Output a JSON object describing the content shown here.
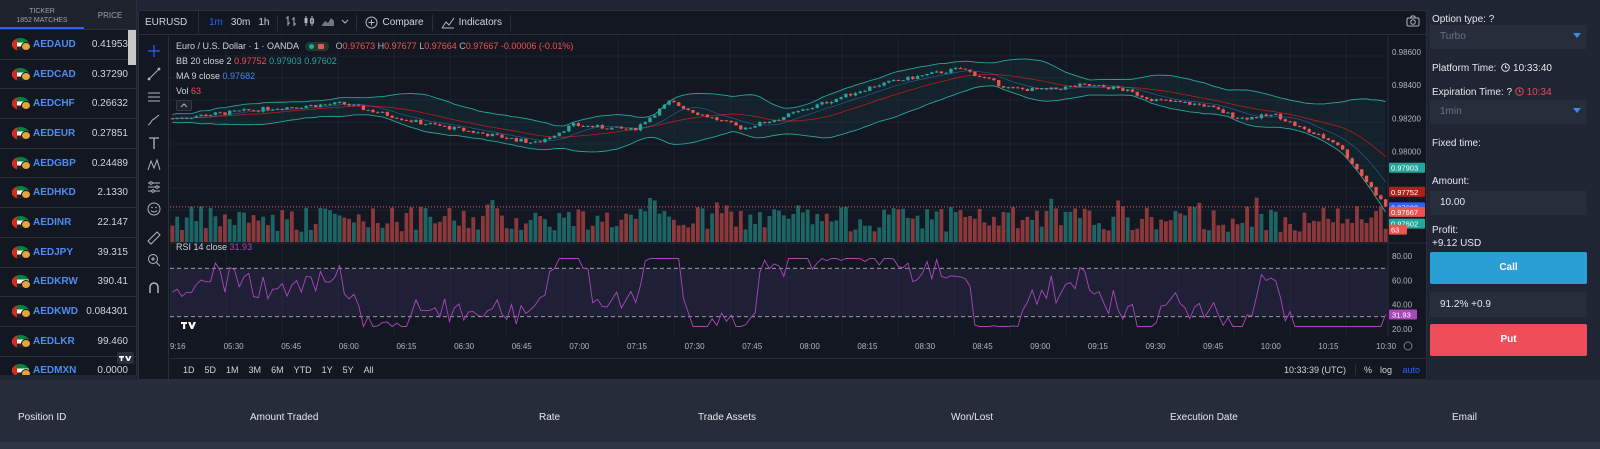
{
  "ticker_panel": {
    "header_ticker": "TICKER",
    "header_matches": "1852 MATCHES",
    "header_price": "PRICE",
    "rows": [
      {
        "symbol": "AEDAUD",
        "price": "0.41953"
      },
      {
        "symbol": "AEDCAD",
        "price": "0.37290"
      },
      {
        "symbol": "AEDCHF",
        "price": "0.26632"
      },
      {
        "symbol": "AEDEUR",
        "price": "0.27851"
      },
      {
        "symbol": "AEDGBP",
        "price": "0.24489"
      },
      {
        "symbol": "AEDHKD",
        "price": "2.1330"
      },
      {
        "symbol": "AEDINR",
        "price": "22.147"
      },
      {
        "symbol": "AEDJPY",
        "price": "39.315"
      },
      {
        "symbol": "AEDKRW",
        "price": "390.41"
      },
      {
        "symbol": "AEDKWD",
        "price": "0.084301"
      },
      {
        "symbol": "AEDLKR",
        "price": "99.460"
      },
      {
        "symbol": "AEDMXN",
        "price": "0.0000"
      }
    ],
    "badge": "TV"
  },
  "toolbar": {
    "symbol": "EURUSD",
    "intervals": [
      "1m",
      "30m",
      "1h"
    ],
    "compare": "Compare",
    "indicators": "Indicators"
  },
  "legend": {
    "main": "Euro / U.S. Dollar · 1 · OANDA",
    "o_label": "O",
    "o": "0.97673",
    "h_label": "H",
    "h": "0.97677",
    "l_label": "L",
    "l": "0.97664",
    "c_label": "C",
    "c": "0.97667",
    "change": "-0.00006 (-0.01%)",
    "bb": "BB 20 close 2",
    "bb_v1": "0.97752",
    "bb_v2": "0.97903",
    "bb_v3": "0.97602",
    "ma": "MA 9 close",
    "ma_v": "0.97682",
    "vol": "Vol",
    "vol_v": "63",
    "rsi": "RSI 14 close",
    "rsi_v": "31.93"
  },
  "price_axis": [
    "0.98600",
    "0.98400",
    "0.98200",
    "0.98000"
  ],
  "price_badges": [
    {
      "label": "0.97903",
      "color": "#26a69a"
    },
    {
      "label": "0.97752",
      "color": "#b71c1c"
    },
    {
      "label": "0.97682",
      "color": "#2962ff"
    },
    {
      "label": "0.97667",
      "color": "#ef5350"
    },
    {
      "label": "0.97602",
      "color": "#26a69a"
    },
    {
      "label": "63",
      "color": "#ef5350"
    }
  ],
  "rsi_axis": [
    "80.00",
    "60.00",
    "40.00",
    "20.00"
  ],
  "rsi_badge": "31.93",
  "time_axis": [
    "9:16",
    "05:30",
    "05:45",
    "06:00",
    "06:15",
    "06:30",
    "06:45",
    "07:00",
    "07:15",
    "07:30",
    "07:45",
    "08:00",
    "08:15",
    "08:30",
    "08:45",
    "09:00",
    "09:15",
    "09:30",
    "09:45",
    "10:00",
    "10:15",
    "10:30"
  ],
  "bottom_bar": {
    "ranges": [
      "1D",
      "5D",
      "1M",
      "3M",
      "6M",
      "YTD",
      "1Y",
      "5Y",
      "All"
    ],
    "time": "10:33:39 (UTC)",
    "percent": "%",
    "log": "log",
    "auto": "auto"
  },
  "right_panel": {
    "option_type_label": "Option type: ?",
    "option_type_value": "Turbo",
    "platform_time_label": "Platform Time:",
    "platform_time": "10:33:40",
    "expiration_label": "Expiration Time: ?",
    "expiration_time": "10:34",
    "expiration_value": "1min",
    "fixed_time_label": "Fixed time:",
    "amount_label": "Amount:",
    "amount_value": "10.00",
    "profit_label": "Profit:",
    "profit_value": "+9.12 USD",
    "call_label": "Call",
    "payout": "91.2% +0.9",
    "put_label": "Put"
  },
  "table": {
    "columns": [
      "Position ID",
      "Amount Traded",
      "Rate",
      "Trade Assets",
      "Won/Lost",
      "Execution Date",
      "Email"
    ]
  },
  "colors": {
    "up": "#26a69a",
    "down": "#ef5350",
    "accent": "#2962ff",
    "call": "#2a9fd6",
    "put": "#f04d5b"
  }
}
